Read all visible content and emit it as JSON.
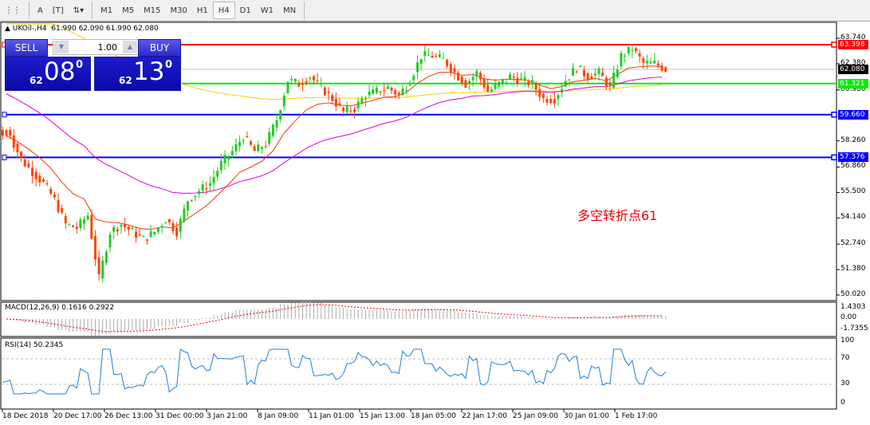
{
  "toolbar": {
    "tools": [
      "grid-icon",
      "text-A-icon",
      "text-box-icon",
      "arrows-icon"
    ],
    "timeframes": [
      "M1",
      "M5",
      "M15",
      "M30",
      "H1",
      "H4",
      "D1",
      "W1",
      "MN"
    ],
    "active": "H4"
  },
  "symbol": {
    "name": "UKOil-,H4",
    "ohlc": "61.990 62.090 61.990 62.080"
  },
  "trade": {
    "sell": "SELL",
    "buy": "BUY",
    "lot": "1.00",
    "sell_small": "62",
    "sell_large": "08",
    "sell_sup": "0",
    "buy_small": "62",
    "buy_large": "13",
    "buy_sup": "0"
  },
  "annotation": "多空转折点61",
  "colors": {
    "bull": "#22cc22",
    "bear": "#ff4400",
    "resistance": "#ff0000",
    "support_green": "#00ee00",
    "blue": "#0000ff",
    "ma_fast": "#ff3300",
    "ma_mid": "#dd00dd",
    "ma_slow": "#ffcc00"
  },
  "chart_data": {
    "type": "candlestick",
    "price_axis": [
      "63.740",
      "62.380",
      "60.980",
      "58.260",
      "56.860",
      "55.500",
      "54.140",
      "52.740",
      "51.380",
      "50.020"
    ],
    "ylim": [
      50.02,
      63.74
    ],
    "levels": [
      {
        "value": "63.398",
        "color": "#ff0000"
      },
      {
        "value": "62.080",
        "color": "#000000"
      },
      {
        "value": "61.321",
        "color": "#00ee00"
      },
      {
        "value": "59.660",
        "color": "#0000ff"
      },
      {
        "value": "57.376",
        "color": "#0000ff"
      }
    ],
    "closes": [
      58.54,
      57.26,
      56.6,
      55.99,
      55.1,
      53.8,
      53.6,
      54.3,
      50.9,
      53.4,
      53.8,
      53.4,
      53.0,
      53.4,
      54.07,
      53.4,
      55.1,
      55.6,
      55.99,
      57.05,
      57.7,
      58.5,
      57.7,
      58.1,
      59.4,
      61.5,
      61.3,
      61.7,
      61.1,
      60.5,
      59.8,
      60.0,
      60.7,
      60.9,
      61.1,
      60.7,
      61.5,
      62.8,
      62.8,
      62.6,
      61.9,
      61.3,
      61.9,
      60.9,
      61.3,
      61.7,
      61.5,
      61.3,
      60.5,
      60.5,
      61.5,
      62.2,
      61.7,
      61.9,
      61.1,
      62.8,
      63.2,
      62.4,
      62.4,
      62.08
    ],
    "time_labels": [
      "18 Dec 2018",
      "20 Dec 17:00",
      "26 Dec 13:00",
      "31 Dec 00:00",
      "3 Jan 21:00",
      "8 Jan 09:00",
      "11 Jan 01:00",
      "15 Jan 13:00",
      "18 Jan 05:00",
      "22 Jan 17:00",
      "25 Jan 09:00",
      "30 Jan 01:00",
      "1 Feb 17:00"
    ],
    "macd": {
      "label": "MACD(12,26,9) 0.1616 0.2922",
      "axis": [
        "1.4303",
        "0.00",
        "-1.7355"
      ]
    },
    "rsi": {
      "label": "RSI(14) 50.2345",
      "axis": [
        "100",
        "70",
        "30",
        "0"
      ]
    }
  }
}
